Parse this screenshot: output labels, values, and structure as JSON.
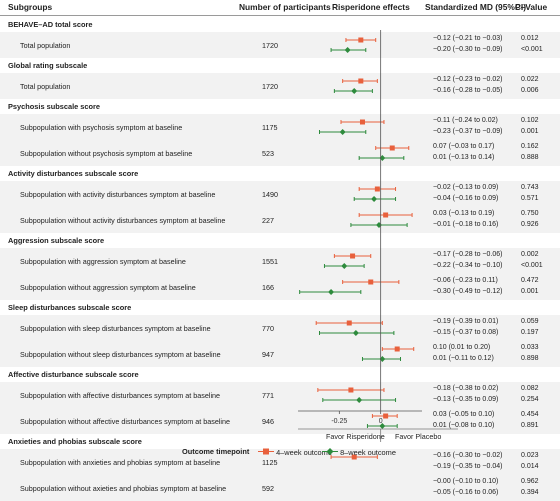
{
  "header": {
    "subgroups": "Subgroups",
    "participants": "Number of participants",
    "effects": "Risperidone effects",
    "smd": "Standardized MD (95%CI)",
    "pvalue": "P–Value"
  },
  "colors": {
    "four_week": "#e8603c",
    "eight_week": "#2e8b3d",
    "stripe": "#f2f2f2"
  },
  "chart_data": {
    "type": "forest",
    "xlabel": "",
    "xlim": [
      -0.5,
      0.25
    ],
    "x_ticks": [
      -0.25,
      0
    ],
    "x_tick_labels": [
      "-0.25",
      "0"
    ],
    "favor_left": "Favor Risperidone",
    "favor_right": "Favor Placebo",
    "legend_title": "Outcome timepoint",
    "series": [
      {
        "name": "4–week outcome",
        "marker": "square"
      },
      {
        "name": "8–week outcome",
        "marker": "diamond"
      }
    ],
    "sections": [
      {
        "title": "BEHAVE–AD total score",
        "rows": [
          {
            "label": "Total population",
            "n": "1720",
            "w4": {
              "est": -0.12,
              "lo": -0.21,
              "hi": -0.03,
              "text": "−0.12 (−0.21 to −0.03)",
              "p": "0.012"
            },
            "w8": {
              "est": -0.2,
              "lo": -0.3,
              "hi": -0.09,
              "text": "−0.20 (−0.30 to −0.09)",
              "p": "<0.001"
            }
          }
        ]
      },
      {
        "title": "Global rating subscale",
        "rows": [
          {
            "label": "Total population",
            "n": "1720",
            "w4": {
              "est": -0.12,
              "lo": -0.23,
              "hi": -0.02,
              "text": "−0.12 (−0.23 to −0.02)",
              "p": "0.022"
            },
            "w8": {
              "est": -0.16,
              "lo": -0.28,
              "hi": -0.05,
              "text": "−0.16 (−0.28 to −0.05)",
              "p": "0.006"
            }
          }
        ]
      },
      {
        "title": "Psychosis subscale score",
        "rows": [
          {
            "label": "Subpopulation with psychosis symptom at baseline",
            "n": "1175",
            "w4": {
              "est": -0.11,
              "lo": -0.24,
              "hi": 0.02,
              "text": "−0.11 (−0.24 to 0.02)",
              "p": "0.102"
            },
            "w8": {
              "est": -0.23,
              "lo": -0.37,
              "hi": -0.09,
              "text": "−0.23 (−0.37 to −0.09)",
              "p": "0.001"
            }
          },
          {
            "label": "Subpopulation without psychosis symptom at baseline",
            "n": "523",
            "w4": {
              "est": 0.07,
              "lo": -0.03,
              "hi": 0.17,
              "text": "0.07 (−0.03 to 0.17)",
              "p": "0.162"
            },
            "w8": {
              "est": 0.01,
              "lo": -0.13,
              "hi": 0.14,
              "text": "0.01 (−0.13 to 0.14)",
              "p": "0.888"
            }
          }
        ]
      },
      {
        "title": "Activity disturbances subscale score",
        "rows": [
          {
            "label": "Subpopulation with activity disturbances symptom at baseline",
            "n": "1490",
            "w4": {
              "est": -0.02,
              "lo": -0.13,
              "hi": 0.09,
              "text": "−0.02 (−0.13 to 0.09)",
              "p": "0.743"
            },
            "w8": {
              "est": -0.04,
              "lo": -0.16,
              "hi": 0.09,
              "text": "−0.04 (−0.16 to 0.09)",
              "p": "0.571"
            }
          },
          {
            "label": "Subpopulation without activity disturbances symptom at baseline",
            "n": "227",
            "w4": {
              "est": 0.03,
              "lo": -0.13,
              "hi": 0.19,
              "text": "0.03 (−0.13 to 0.19)",
              "p": "0.750"
            },
            "w8": {
              "est": -0.01,
              "lo": -0.18,
              "hi": 0.16,
              "text": "−0.01 (−0.18 to 0.16)",
              "p": "0.926"
            }
          }
        ]
      },
      {
        "title": "Aggression subscale score",
        "rows": [
          {
            "label": "Subpopulation with aggression symptom at baseline",
            "n": "1551",
            "w4": {
              "est": -0.17,
              "lo": -0.28,
              "hi": -0.06,
              "text": "−0.17 (−0.28 to −0.06)",
              "p": "0.002"
            },
            "w8": {
              "est": -0.22,
              "lo": -0.34,
              "hi": -0.1,
              "text": "−0.22 (−0.34 to −0.10)",
              "p": "<0.001"
            }
          },
          {
            "label": "Subpopulation without aggression symptom at baseline",
            "n": "166",
            "w4": {
              "est": -0.06,
              "lo": -0.23,
              "hi": 0.11,
              "text": "−0.06 (−0.23 to 0.11)",
              "p": "0.472"
            },
            "w8": {
              "est": -0.3,
              "lo": -0.49,
              "hi": -0.12,
              "text": "−0.30 (−0.49 to −0.12)",
              "p": "0.001"
            }
          }
        ]
      },
      {
        "title": "Sleep disturbances subscale score",
        "rows": [
          {
            "label": "Subpopulation with sleep disturbances symptom at baseline",
            "n": "770",
            "w4": {
              "est": -0.19,
              "lo": -0.39,
              "hi": 0.01,
              "text": "−0.19 (−0.39 to 0.01)",
              "p": "0.059"
            },
            "w8": {
              "est": -0.15,
              "lo": -0.37,
              "hi": 0.08,
              "text": "−0.15 (−0.37 to 0.08)",
              "p": "0.197"
            }
          },
          {
            "label": "Subpopulation without sleep disturbances symptom at baseline",
            "n": "947",
            "w4": {
              "est": 0.1,
              "lo": 0.01,
              "hi": 0.2,
              "text": "0.10 (0.01 to 0.20)",
              "p": "0.033"
            },
            "w8": {
              "est": 0.01,
              "lo": -0.11,
              "hi": 0.12,
              "text": "0.01 (−0.11 to 0.12)",
              "p": "0.898"
            }
          }
        ]
      },
      {
        "title": "Affective disturbance subscale score",
        "rows": [
          {
            "label": "Subpopulation with affective disturbances symptom at baseline",
            "n": "771",
            "w4": {
              "est": -0.18,
              "lo": -0.38,
              "hi": 0.02,
              "text": "−0.18 (−0.38 to 0.02)",
              "p": "0.082"
            },
            "w8": {
              "est": -0.13,
              "lo": -0.35,
              "hi": 0.09,
              "text": "−0.13 (−0.35 to 0.09)",
              "p": "0.254"
            }
          },
          {
            "label": "Subpopulation without affective disturbances symptom at baseline",
            "n": "946",
            "w4": {
              "est": 0.03,
              "lo": -0.05,
              "hi": 0.1,
              "text": "0.03 (−0.05 to 0.10)",
              "p": "0.454"
            },
            "w8": {
              "est": 0.01,
              "lo": -0.08,
              "hi": 0.1,
              "text": "0.01 (−0.08 to 0.10)",
              "p": "0.891"
            }
          }
        ]
      },
      {
        "title": "Anxieties and phobias subscale score",
        "rows": [
          {
            "label": "Subpopulation with anxieties and phobias symptom at baseline",
            "n": "1125",
            "w4": {
              "est": -0.16,
              "lo": -0.3,
              "hi": -0.02,
              "text": "−0.16 (−0.30 to −0.02)",
              "p": "0.023"
            },
            "w8": {
              "est": -0.19,
              "lo": -0.35,
              "hi": -0.04,
              "text": "−0.19 (−0.35 to −0.04)",
              "p": "0.014"
            }
          },
          {
            "label": "Subpopulation without axieties and phobias symptom at baseline",
            "n": "592",
            "w4": {
              "est": -0.0,
              "lo": -0.1,
              "hi": 0.1,
              "text": "−0.00 (−0.10 to 0.10)",
              "p": "0.962"
            },
            "w8": {
              "est": -0.05,
              "lo": -0.16,
              "hi": 0.06,
              "text": "−0.05 (−0.16 to 0.06)",
              "p": "0.394"
            }
          }
        ]
      }
    ]
  }
}
